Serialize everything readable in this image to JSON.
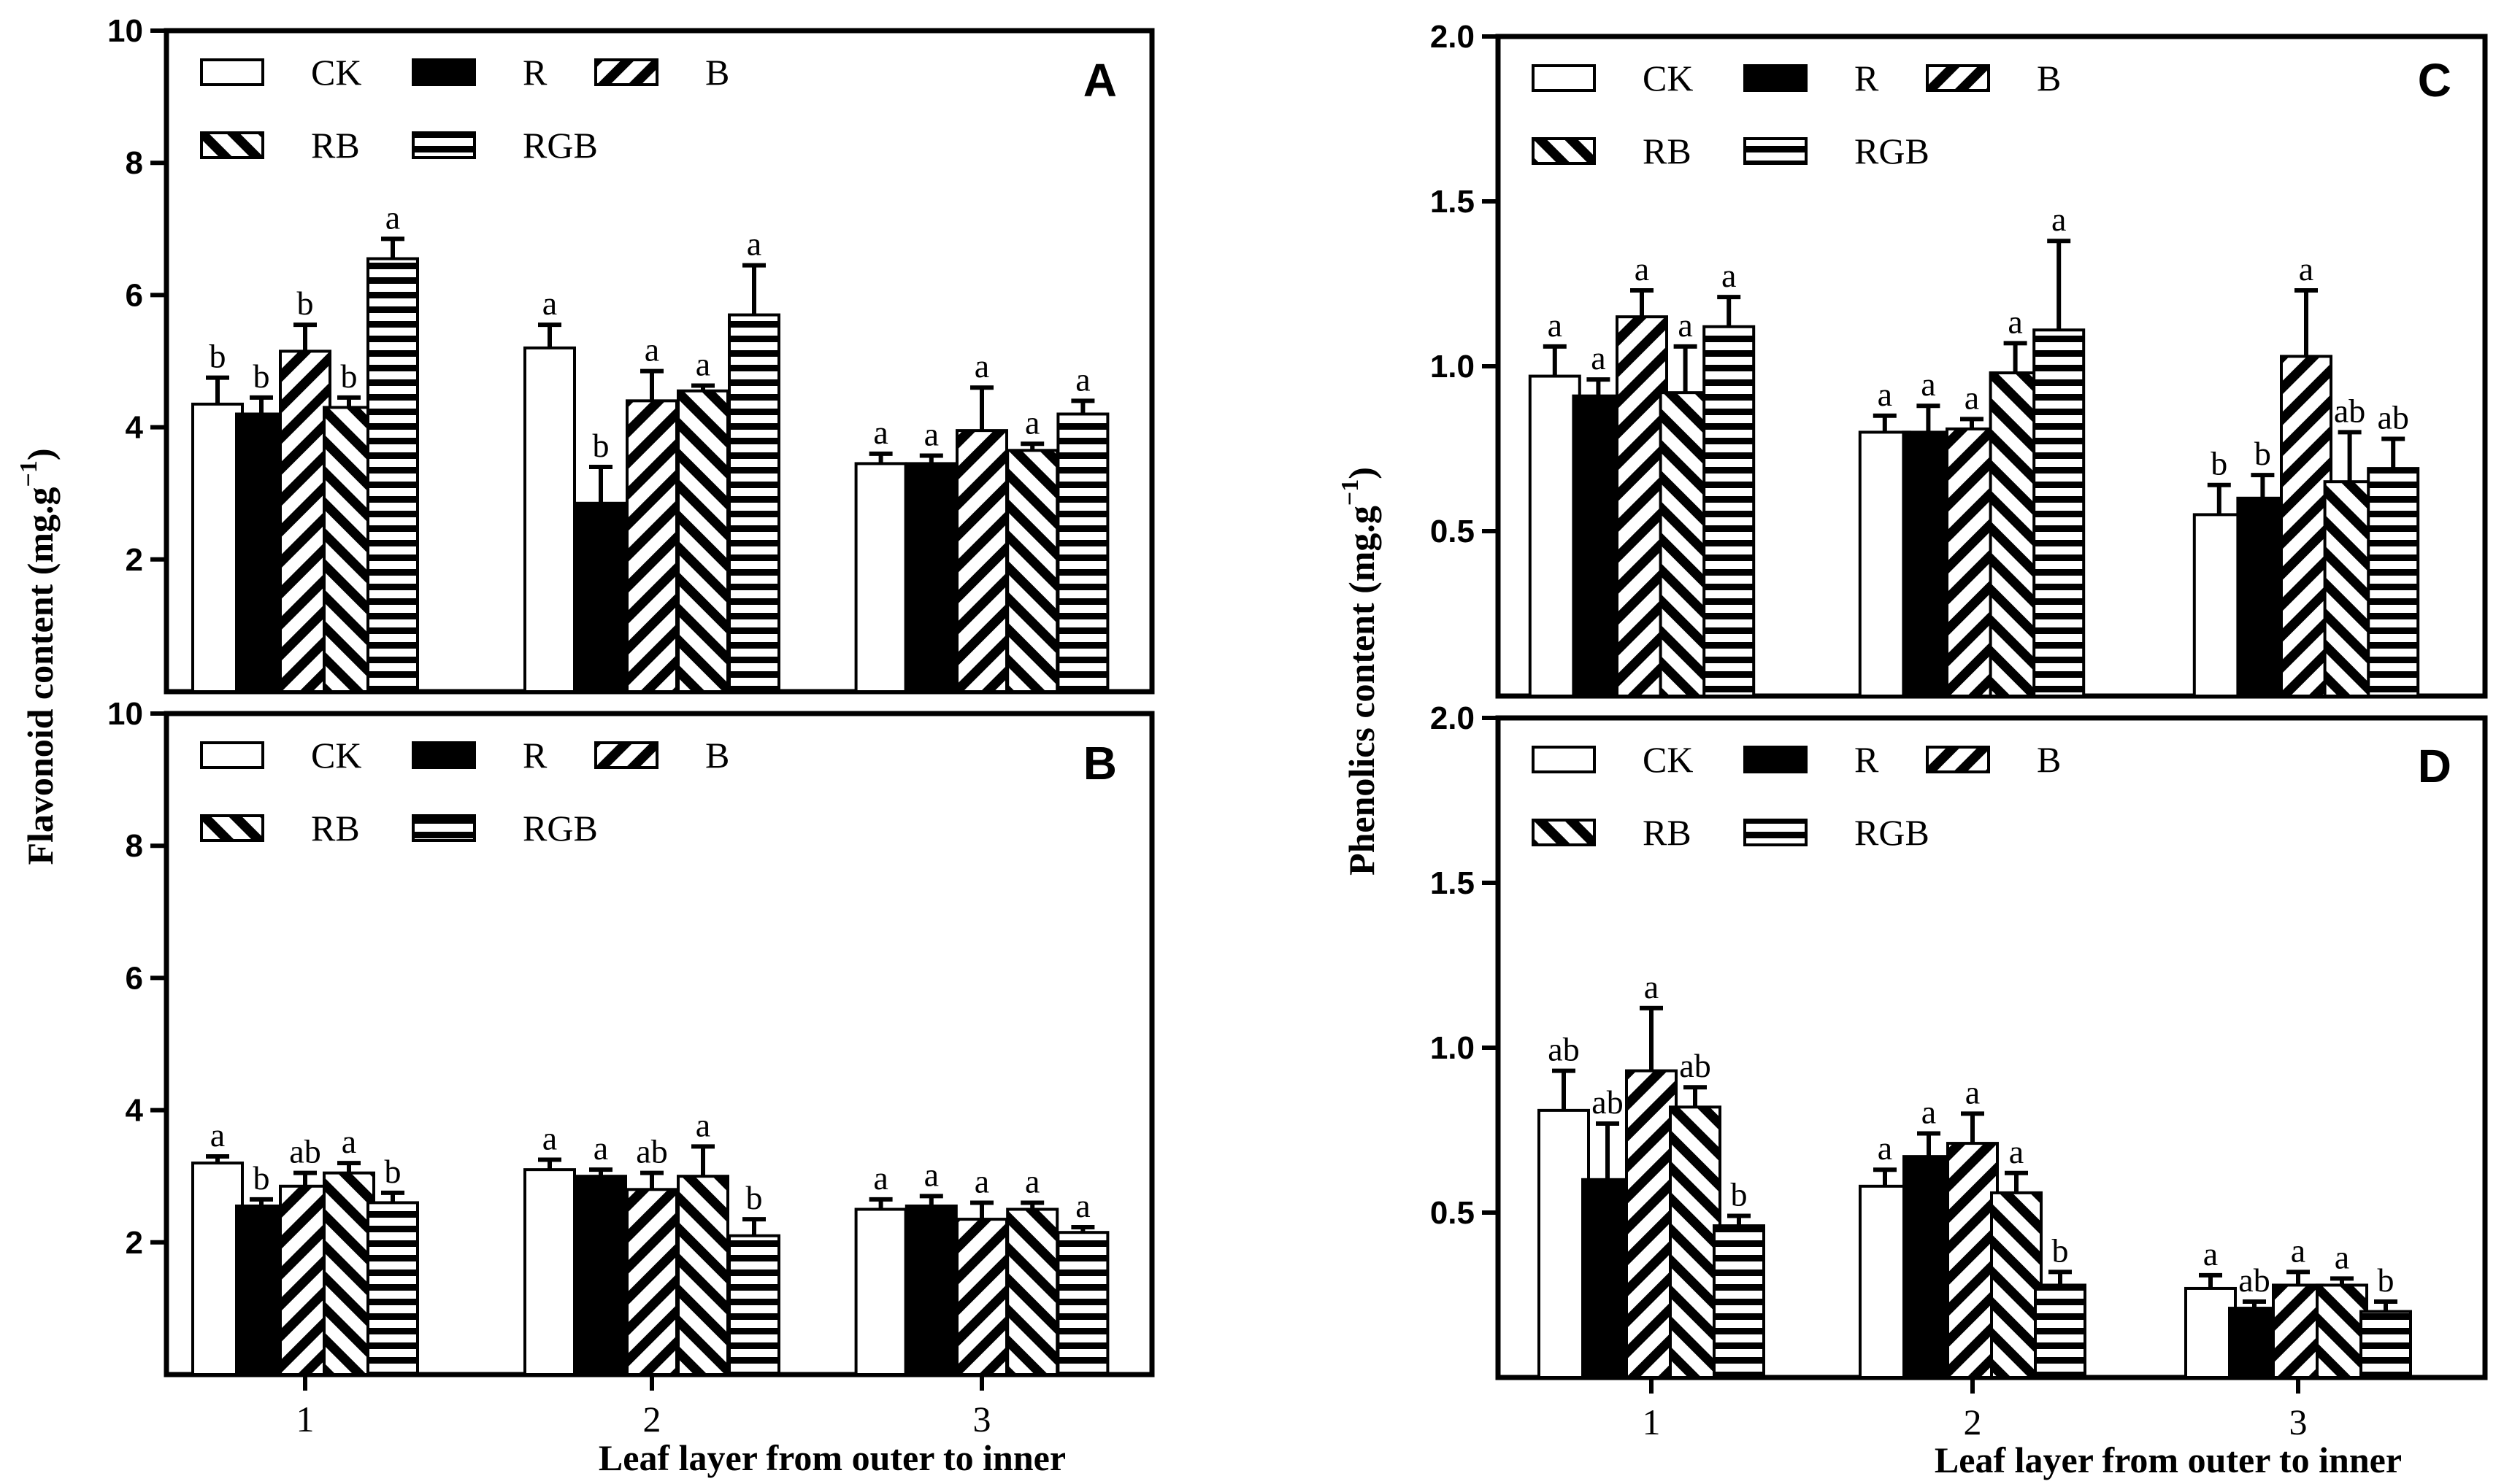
{
  "figure": {
    "left_ylabel": "Flavonoid content (mg.g",
    "right_ylabel": "Phenolics content (mg.g",
    "ylabel_exponent": "−1",
    "ylabel_close": ")",
    "xlabel": "Leaf layer from outer to inner"
  },
  "legend": {
    "items": [
      {
        "label": "CK",
        "pattern": "white"
      },
      {
        "label": "R",
        "pattern": "black"
      },
      {
        "label": "B",
        "pattern": "diag-up"
      },
      {
        "label": "RB",
        "pattern": "diag-down"
      },
      {
        "label": "RGB",
        "pattern": "horizontal"
      }
    ]
  },
  "chart_data": [
    {
      "id": "A",
      "type": "bar",
      "panel_label": "A",
      "categories": [
        "1",
        "2",
        "3"
      ],
      "ylim": [
        0,
        10
      ],
      "yticks": [
        2,
        4,
        6,
        8,
        10
      ],
      "ytick_labels": [
        "2",
        "4",
        "6",
        "8",
        "10"
      ],
      "series": [
        {
          "name": "CK",
          "values": [
            4.35,
            5.2,
            3.45
          ],
          "errors": [
            0.4,
            0.35,
            0.15
          ],
          "letters": [
            "b",
            "a",
            "a"
          ]
        },
        {
          "name": "R",
          "values": [
            4.2,
            2.85,
            3.45
          ],
          "errors": [
            0.25,
            0.55,
            0.12
          ],
          "letters": [
            "b",
            "b",
            "a"
          ]
        },
        {
          "name": "B",
          "values": [
            5.15,
            4.4,
            3.95
          ],
          "errors": [
            0.4,
            0.45,
            0.65
          ],
          "letters": [
            "b",
            "a",
            "a"
          ]
        },
        {
          "name": "RB",
          "values": [
            4.3,
            4.55,
            3.65
          ],
          "errors": [
            0.15,
            0.08,
            0.1
          ],
          "letters": [
            "b",
            "a",
            "a"
          ]
        },
        {
          "name": "RGB",
          "values": [
            6.55,
            5.7,
            4.2
          ],
          "errors": [
            0.3,
            0.75,
            0.2
          ],
          "letters": [
            "a",
            "a",
            "a"
          ]
        }
      ]
    },
    {
      "id": "B",
      "type": "bar",
      "panel_label": "B",
      "categories": [
        "1",
        "2",
        "3"
      ],
      "xticks_shown": true,
      "ylim": [
        0,
        10
      ],
      "yticks": [
        2,
        4,
        6,
        8,
        10
      ],
      "ytick_labels": [
        "2",
        "4",
        "6",
        "8",
        "10"
      ],
      "series": [
        {
          "name": "CK",
          "values": [
            3.2,
            3.1,
            2.5
          ],
          "errors": [
            0.1,
            0.15,
            0.15
          ],
          "letters": [
            "a",
            "a",
            "a"
          ]
        },
        {
          "name": "R",
          "values": [
            2.55,
            3.0,
            2.55
          ],
          "errors": [
            0.1,
            0.1,
            0.15
          ],
          "letters": [
            "b",
            "a",
            "a"
          ]
        },
        {
          "name": "B",
          "values": [
            2.85,
            2.8,
            2.35
          ],
          "errors": [
            0.2,
            0.25,
            0.25
          ],
          "letters": [
            "ab",
            "ab",
            "a"
          ]
        },
        {
          "name": "RB",
          "values": [
            3.05,
            3.0,
            2.5
          ],
          "errors": [
            0.15,
            0.45,
            0.1
          ],
          "letters": [
            "a",
            "a",
            "a"
          ]
        },
        {
          "name": "RGB",
          "values": [
            2.6,
            2.1,
            2.15
          ],
          "errors": [
            0.15,
            0.25,
            0.08
          ],
          "letters": [
            "b",
            "b",
            "a"
          ]
        }
      ]
    },
    {
      "id": "C",
      "type": "bar",
      "panel_label": "C",
      "categories": [
        "1",
        "2",
        "3"
      ],
      "ylim": [
        0,
        2.0
      ],
      "yticks": [
        0.5,
        1.0,
        1.5,
        2.0
      ],
      "ytick_labels": [
        "0.5",
        "1.0",
        "1.5",
        "2.0"
      ],
      "series": [
        {
          "name": "CK",
          "values": [
            0.97,
            0.8,
            0.55
          ],
          "errors": [
            0.09,
            0.05,
            0.09
          ],
          "letters": [
            "a",
            "a",
            "b"
          ]
        },
        {
          "name": "R",
          "values": [
            0.91,
            0.8,
            0.6
          ],
          "errors": [
            0.05,
            0.08,
            0.07
          ],
          "letters": [
            "a",
            "a",
            "b"
          ]
        },
        {
          "name": "B",
          "values": [
            1.15,
            0.81,
            1.03
          ],
          "errors": [
            0.08,
            0.03,
            0.2
          ],
          "letters": [
            "a",
            "a",
            "a"
          ]
        },
        {
          "name": "RB",
          "values": [
            0.92,
            0.98,
            0.65
          ],
          "errors": [
            0.14,
            0.09,
            0.15
          ],
          "letters": [
            "a",
            "a",
            "ab"
          ]
        },
        {
          "name": "RGB",
          "values": [
            1.12,
            1.11,
            0.69
          ],
          "errors": [
            0.09,
            0.27,
            0.09
          ],
          "letters": [
            "a",
            "a",
            "ab"
          ]
        }
      ]
    },
    {
      "id": "D",
      "type": "bar",
      "panel_label": "D",
      "categories": [
        "1",
        "2",
        "3"
      ],
      "xticks_shown": true,
      "ylim": [
        0,
        2.0
      ],
      "yticks": [
        0.5,
        1.0,
        1.5,
        2.0
      ],
      "ytick_labels": [
        "0.5",
        "1.0",
        "1.5",
        "2.0"
      ],
      "series": [
        {
          "name": "CK",
          "values": [
            0.81,
            0.58,
            0.27
          ],
          "errors": [
            0.12,
            0.05,
            0.04
          ],
          "letters": [
            "ab",
            "a",
            "a"
          ]
        },
        {
          "name": "R",
          "values": [
            0.6,
            0.67,
            0.21
          ],
          "errors": [
            0.17,
            0.07,
            0.02
          ],
          "letters": [
            "ab",
            "a",
            "ab"
          ]
        },
        {
          "name": "B",
          "values": [
            0.93,
            0.71,
            0.28
          ],
          "errors": [
            0.19,
            0.09,
            0.04
          ],
          "letters": [
            "a",
            "a",
            "a"
          ]
        },
        {
          "name": "RB",
          "values": [
            0.82,
            0.56,
            0.28
          ],
          "errors": [
            0.06,
            0.06,
            0.02
          ],
          "letters": [
            "ab",
            "a",
            "a"
          ]
        },
        {
          "name": "RGB",
          "values": [
            0.46,
            0.28,
            0.2
          ],
          "errors": [
            0.03,
            0.04,
            0.03
          ],
          "letters": [
            "b",
            "b",
            "b"
          ]
        }
      ]
    }
  ]
}
